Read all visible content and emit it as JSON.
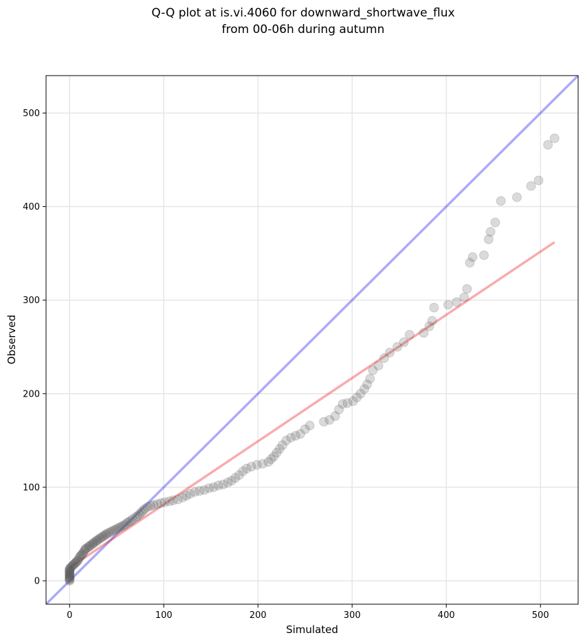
{
  "chart_data": {
    "type": "scatter",
    "title_line1": "Q-Q plot at is.vi.4060 for downward_shortwave_flux",
    "title_line2": "from 00-06h during autumn",
    "xlabel": "Simulated",
    "ylabel": "Observed",
    "xlim": [
      -25,
      540
    ],
    "ylim": [
      -25,
      540
    ],
    "x_ticks": [
      0,
      100,
      200,
      300,
      400,
      500
    ],
    "y_ticks": [
      0,
      100,
      200,
      300,
      400,
      500
    ],
    "x_tick_labels": [
      "0",
      "100",
      "200",
      "300",
      "400",
      "500"
    ],
    "y_tick_labels": [
      "0",
      "100",
      "200",
      "300",
      "400",
      "500"
    ],
    "grid": true,
    "reference_line": {
      "name": "1:1",
      "color": "#0000ee",
      "from": [
        -25,
        -25
      ],
      "to": [
        540,
        540
      ]
    },
    "fit_line": {
      "name": "fit",
      "color": "#ee0000",
      "from": [
        0,
        14
      ],
      "to": [
        515,
        362
      ]
    },
    "point_color": "#555555",
    "points": [
      [
        0,
        0
      ],
      [
        0,
        1
      ],
      [
        0,
        2
      ],
      [
        0,
        3
      ],
      [
        0,
        4
      ],
      [
        0,
        5
      ],
      [
        0,
        6
      ],
      [
        0,
        7
      ],
      [
        0,
        8
      ],
      [
        0,
        9
      ],
      [
        0,
        10
      ],
      [
        0,
        11
      ],
      [
        0,
        12
      ],
      [
        0,
        13
      ],
      [
        1,
        14
      ],
      [
        2,
        15
      ],
      [
        3,
        16
      ],
      [
        4,
        17
      ],
      [
        5,
        18
      ],
      [
        6,
        19
      ],
      [
        7,
        20
      ],
      [
        8,
        21
      ],
      [
        9,
        22
      ],
      [
        10,
        24
      ],
      [
        11,
        26
      ],
      [
        12,
        27
      ],
      [
        13,
        28
      ],
      [
        14,
        29
      ],
      [
        15,
        31
      ],
      [
        16,
        33
      ],
      [
        17,
        34
      ],
      [
        18,
        35
      ],
      [
        20,
        36
      ],
      [
        21,
        37
      ],
      [
        22,
        38
      ],
      [
        24,
        39
      ],
      [
        25,
        40
      ],
      [
        26,
        41
      ],
      [
        28,
        42
      ],
      [
        29,
        43
      ],
      [
        30,
        44
      ],
      [
        32,
        45
      ],
      [
        33,
        46
      ],
      [
        35,
        47
      ],
      [
        36,
        48
      ],
      [
        38,
        49
      ],
      [
        39,
        50
      ],
      [
        41,
        51
      ],
      [
        43,
        52
      ],
      [
        45,
        53
      ],
      [
        47,
        54
      ],
      [
        49,
        55
      ],
      [
        51,
        56
      ],
      [
        53,
        57
      ],
      [
        55,
        58
      ],
      [
        57,
        59
      ],
      [
        59,
        60
      ],
      [
        61,
        62
      ],
      [
        63,
        63
      ],
      [
        65,
        64
      ],
      [
        67,
        66
      ],
      [
        70,
        68
      ],
      [
        72,
        69
      ],
      [
        74,
        71
      ],
      [
        76,
        73
      ],
      [
        78,
        75
      ],
      [
        80,
        77
      ],
      [
        83,
        79
      ],
      [
        86,
        80
      ],
      [
        89,
        81
      ],
      [
        93,
        82
      ],
      [
        97,
        83
      ],
      [
        101,
        84
      ],
      [
        106,
        85
      ],
      [
        110,
        86
      ],
      [
        115,
        87
      ],
      [
        120,
        89
      ],
      [
        124,
        91
      ],
      [
        128,
        93
      ],
      [
        133,
        95
      ],
      [
        138,
        96
      ],
      [
        143,
        97
      ],
      [
        148,
        99
      ],
      [
        153,
        100
      ],
      [
        158,
        102
      ],
      [
        163,
        103
      ],
      [
        168,
        105
      ],
      [
        172,
        107
      ],
      [
        176,
        110
      ],
      [
        180,
        113
      ],
      [
        184,
        117
      ],
      [
        188,
        120
      ],
      [
        193,
        122
      ],
      [
        199,
        124
      ],
      [
        205,
        125
      ],
      [
        211,
        127
      ],
      [
        214,
        130
      ],
      [
        217,
        133
      ],
      [
        220,
        137
      ],
      [
        223,
        141
      ],
      [
        226,
        145
      ],
      [
        230,
        150
      ],
      [
        235,
        153
      ],
      [
        240,
        155
      ],
      [
        245,
        157
      ],
      [
        250,
        162
      ],
      [
        255,
        166
      ],
      [
        270,
        170
      ],
      [
        276,
        172
      ],
      [
        282,
        176
      ],
      [
        286,
        183
      ],
      [
        290,
        189
      ],
      [
        295,
        190
      ],
      [
        301,
        192
      ],
      [
        305,
        196
      ],
      [
        309,
        200
      ],
      [
        313,
        205
      ],
      [
        316,
        210
      ],
      [
        319,
        216
      ],
      [
        322,
        225
      ],
      [
        328,
        230
      ],
      [
        334,
        238
      ],
      [
        340,
        244
      ],
      [
        348,
        250
      ],
      [
        355,
        255
      ],
      [
        361,
        263
      ],
      [
        376,
        265
      ],
      [
        382,
        272
      ],
      [
        385,
        278
      ],
      [
        387,
        292
      ],
      [
        402,
        295
      ],
      [
        411,
        298
      ],
      [
        419,
        303
      ],
      [
        422,
        312
      ],
      [
        425,
        340
      ],
      [
        428,
        346
      ],
      [
        440,
        348
      ],
      [
        445,
        365
      ],
      [
        447,
        373
      ],
      [
        452,
        383
      ],
      [
        458,
        406
      ],
      [
        475,
        410
      ],
      [
        490,
        422
      ],
      [
        498,
        428
      ],
      [
        508,
        466
      ],
      [
        515,
        473
      ]
    ]
  }
}
